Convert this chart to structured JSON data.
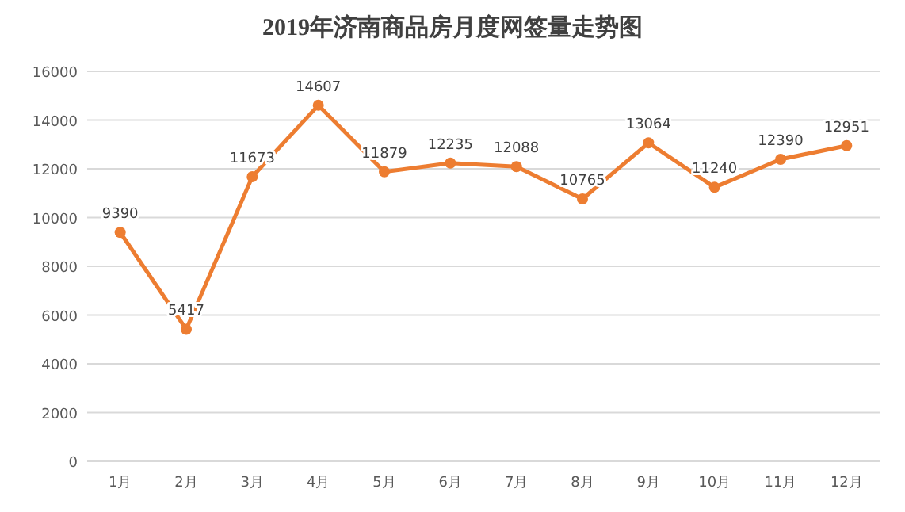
{
  "chart_data": {
    "type": "line",
    "title": "2019年济南商品房月度网签量走势图",
    "categories": [
      "1月",
      "2月",
      "3月",
      "4月",
      "5月",
      "6月",
      "7月",
      "8月",
      "9月",
      "10月",
      "11月",
      "12月"
    ],
    "series": [
      {
        "color": "#ed7d31",
        "values": [
          9390,
          5417,
          11673,
          14607,
          11879,
          12235,
          12088,
          10765,
          13064,
          11240,
          12390,
          12951
        ]
      }
    ],
    "ylim": [
      0,
      16000
    ],
    "yticks": [
      0,
      2000,
      4000,
      6000,
      8000,
      10000,
      12000,
      14000,
      16000
    ],
    "grid": "y",
    "marker": "circle",
    "line_style": "solid",
    "data_labels": true
  }
}
